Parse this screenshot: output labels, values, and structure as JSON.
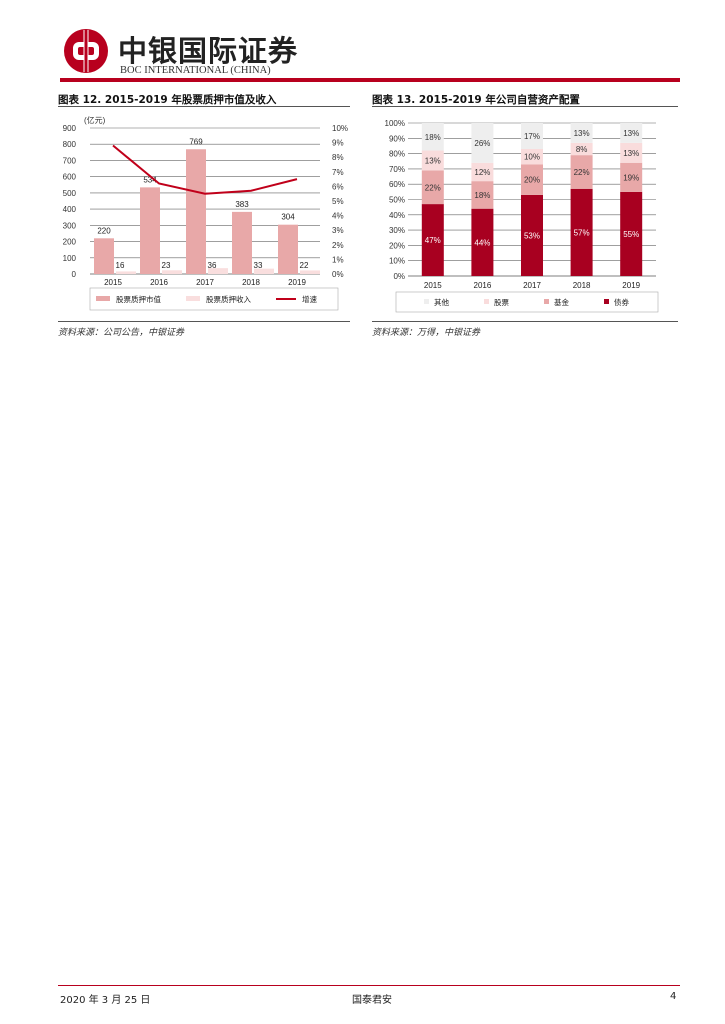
{
  "header": {
    "company_cn": "中银国际证券",
    "company_en": "BOC INTERNATIONAL (CHINA)"
  },
  "figures": {
    "left_title": "图表 12. 2015-2019 年股票质押市值及收入",
    "left_source": "资料来源：公司公告，中银证券",
    "right_title": "图表 13. 2015-2019 年公司自营资产配置",
    "right_source": "资料来源：万得，中银证券"
  },
  "footer": {
    "date": "2020 年 3 月 25 日",
    "brand": "国泰君安",
    "page": "4"
  },
  "colors": {
    "brand_red": "#b8001e",
    "pledge_value": "#e8a8a8",
    "pledge_income": "#f9dede",
    "growth_line": "#c0001a",
    "bond": "#a80020",
    "fund": "#e8a8a8",
    "stock": "#f9dcdc",
    "other": "#eeeeee"
  },
  "chart_data": [
    {
      "type": "bar",
      "title": "",
      "unit_label": "(亿元)",
      "categories": [
        "2015",
        "2016",
        "2017",
        "2018",
        "2019"
      ],
      "series": [
        {
          "name": "股票质押市值",
          "values": [
            220,
            534,
            769,
            383,
            304
          ],
          "axis": "left"
        },
        {
          "name": "股票质押收入",
          "values": [
            16,
            23,
            36,
            33,
            22
          ],
          "axis": "left"
        },
        {
          "name": "增速",
          "type": "line",
          "values": [
            8.8,
            6.2,
            5.5,
            5.7,
            6.5
          ],
          "axis": "right"
        }
      ],
      "y_ticks": [
        "0",
        "100",
        "200",
        "300",
        "400",
        "500",
        "600",
        "700",
        "800",
        "900"
      ],
      "y2_ticks": [
        "0%",
        "1%",
        "2%",
        "3%",
        "4%",
        "5%",
        "6%",
        "7%",
        "8%",
        "9%",
        "10%"
      ],
      "ylim": [
        0,
        900
      ],
      "y2lim": [
        0,
        10
      ],
      "legend_position": "bottom"
    },
    {
      "type": "bar",
      "stacked": true,
      "title": "",
      "categories": [
        "2015",
        "2016",
        "2017",
        "2018",
        "2019"
      ],
      "series": [
        {
          "name": "债券",
          "values": [
            47,
            44,
            53,
            57,
            55
          ],
          "labels": [
            "47%",
            "44%",
            "53%",
            "57%",
            "55%"
          ]
        },
        {
          "name": "基金",
          "values": [
            22,
            18,
            20,
            22,
            19
          ],
          "labels": [
            "22%",
            "18%",
            "20%",
            "22%",
            "19%"
          ]
        },
        {
          "name": "股票",
          "values": [
            13,
            12,
            10,
            8,
            13
          ],
          "labels": [
            "13%",
            "12%",
            "10%",
            "8%",
            "13%"
          ]
        },
        {
          "name": "其他",
          "values": [
            18,
            26,
            17,
            13,
            13
          ],
          "labels": [
            "18%",
            "26%",
            "17%",
            "13%",
            "13%"
          ]
        }
      ],
      "y_ticks": [
        "0%",
        "10%",
        "20%",
        "30%",
        "40%",
        "50%",
        "60%",
        "70%",
        "80%",
        "90%",
        "100%"
      ],
      "ylim": [
        0,
        100
      ],
      "legend_position": "bottom"
    }
  ]
}
